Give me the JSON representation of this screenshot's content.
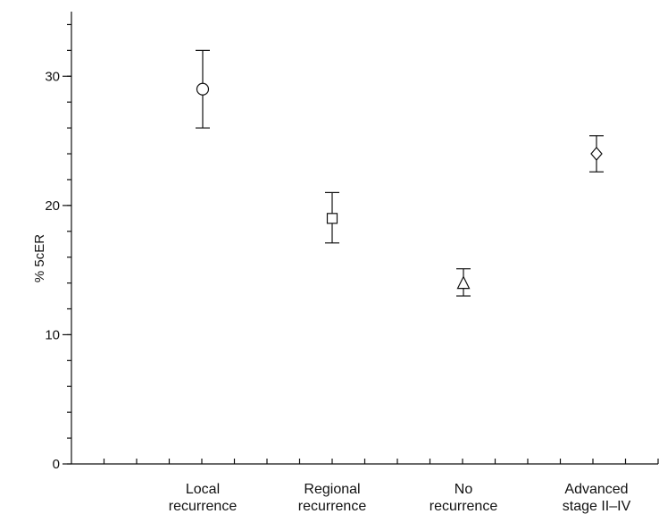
{
  "chart_data": {
    "type": "scatter",
    "ylabel": "% 5cER",
    "ylim": [
      0,
      35
    ],
    "yticks": [
      0,
      10,
      20,
      30
    ],
    "y_minor_step": 2,
    "x_minor_tick_count": 18,
    "grid": false,
    "categories": [
      [
        "Local",
        "recurrence"
      ],
      [
        "Regional",
        "recurrence"
      ],
      [
        "No",
        "recurrence"
      ],
      [
        "Advanced",
        "stage II–IV"
      ]
    ],
    "points": [
      {
        "value": 29,
        "lower": 26,
        "upper": 32,
        "marker": "circle"
      },
      {
        "value": 19,
        "lower": 17.1,
        "upper": 21,
        "marker": "square"
      },
      {
        "value": 14,
        "lower": 13,
        "upper": 15.1,
        "marker": "triangle"
      },
      {
        "value": 24,
        "lower": 22.6,
        "upper": 25.4,
        "marker": "diamond"
      }
    ],
    "colors": {
      "ink": "#111111",
      "background": "#ffffff"
    }
  }
}
